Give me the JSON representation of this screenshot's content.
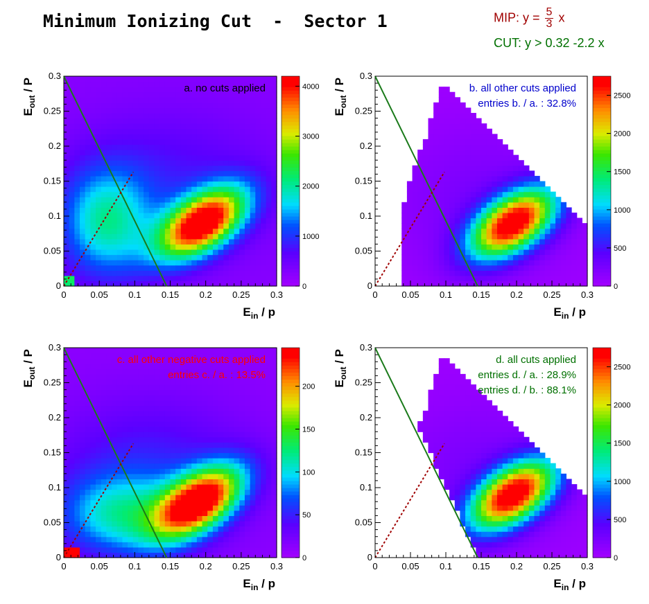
{
  "title": "Minimum Ionizing Cut  -  Sector 1",
  "legend": {
    "mip_prefix": "MIP:  y = ",
    "mip_num": "5",
    "mip_den": "3",
    "mip_suffix": " x",
    "cut_text": "CUT:  y > 0.32 -2.2 x",
    "mip_color": "#a00000",
    "cut_color": "#007000"
  },
  "chart_data": [
    {
      "type": "heatmap",
      "panel": "a",
      "xlabel": "E_in / p",
      "ylabel": "E_out / P",
      "xlim": [
        0,
        0.3
      ],
      "ylim": [
        0,
        0.3
      ],
      "xticks": [
        "0",
        "0.05",
        "0.1",
        "0.15",
        "0.2",
        "0.25",
        "0.3"
      ],
      "yticks": [
        "0",
        "0.05",
        "0.1",
        "0.15",
        "0.2",
        "0.25",
        "0.3"
      ],
      "zlim": [
        0,
        4200
      ],
      "zticks": [
        0,
        1000,
        2000,
        3000,
        4000
      ],
      "annotations": [
        {
          "text": "a. no cuts applied",
          "color": "#000000"
        }
      ],
      "peak": {
        "x": 0.195,
        "y": 0.09
      },
      "region": "full",
      "mip_line": {
        "x": [
          0,
          0.098
        ],
        "y": [
          0,
          0.163
        ]
      },
      "cut_line": {
        "x": [
          0,
          0.145
        ],
        "y": [
          0.32,
          0
        ]
      }
    },
    {
      "type": "heatmap",
      "panel": "b",
      "xlabel": "E_in / p",
      "ylabel": "E_out / P",
      "xlim": [
        0,
        0.3
      ],
      "ylim": [
        0,
        0.3
      ],
      "xticks": [
        "0",
        "0.05",
        "0.1",
        "0.15",
        "0.2",
        "0.25",
        "0.3"
      ],
      "yticks": [
        "0",
        "0.05",
        "0.1",
        "0.15",
        "0.2",
        "0.25",
        "0.3"
      ],
      "zlim": [
        0,
        2750
      ],
      "zticks": [
        0,
        500,
        1000,
        1500,
        2000,
        2500
      ],
      "annotations": [
        {
          "text": "b. all other cuts applied",
          "color": "#0000cc"
        },
        {
          "text": "entries b. / a. : 32.8%",
          "color": "#0000cc"
        }
      ],
      "peak": {
        "x": 0.195,
        "y": 0.09
      },
      "region": "wedge",
      "mip_line": {
        "x": [
          0,
          0.098
        ],
        "y": [
          0,
          0.163
        ]
      },
      "cut_line": {
        "x": [
          0,
          0.145
        ],
        "y": [
          0.32,
          0
        ]
      }
    },
    {
      "type": "heatmap",
      "panel": "c",
      "xlabel": "E_in / p",
      "ylabel": "E_out / P",
      "xlim": [
        0,
        0.3
      ],
      "ylim": [
        0,
        0.3
      ],
      "xticks": [
        "0",
        "0.05",
        "0.1",
        "0.15",
        "0.2",
        "0.25",
        "0.3"
      ],
      "yticks": [
        "0",
        "0.05",
        "0.1",
        "0.15",
        "0.2",
        "0.25",
        "0.3"
      ],
      "zlim": [
        0,
        245
      ],
      "zticks": [
        0,
        50,
        100,
        150,
        200
      ],
      "annotations": [
        {
          "text": "c. all other negative cuts applied",
          "color": "#ff0000"
        },
        {
          "text": "entries c. / a. : 13.5%",
          "color": "#ff0000"
        }
      ],
      "peak": {
        "x": 0.19,
        "y": 0.08
      },
      "region": "full",
      "mip_line": {
        "x": [
          0,
          0.098
        ],
        "y": [
          0,
          0.163
        ]
      },
      "cut_line": {
        "x": [
          0,
          0.145
        ],
        "y": [
          0.32,
          0
        ]
      }
    },
    {
      "type": "heatmap",
      "panel": "d",
      "xlabel": "E_in / p",
      "ylabel": "E_out / P",
      "xlim": [
        0,
        0.3
      ],
      "ylim": [
        0,
        0.3
      ],
      "xticks": [
        "0",
        "0.05",
        "0.1",
        "0.15",
        "0.2",
        "0.25",
        "0.3"
      ],
      "yticks": [
        "0",
        "0.05",
        "0.1",
        "0.15",
        "0.2",
        "0.25",
        "0.3"
      ],
      "zlim": [
        0,
        2750
      ],
      "zticks": [
        0,
        500,
        1000,
        1500,
        2000,
        2500
      ],
      "annotations": [
        {
          "text": "d. all cuts applied",
          "color": "#007000"
        },
        {
          "text": "entries d. / a. : 28.9%",
          "color": "#007000"
        },
        {
          "text": "entries d. / b. : 88.1%",
          "color": "#007000"
        }
      ],
      "peak": {
        "x": 0.195,
        "y": 0.09
      },
      "region": "wedge-cut",
      "mip_line": {
        "x": [
          0,
          0.098
        ],
        "y": [
          0,
          0.163
        ]
      },
      "cut_line": {
        "x": [
          0,
          0.145
        ],
        "y": [
          0.32,
          0
        ]
      }
    }
  ]
}
